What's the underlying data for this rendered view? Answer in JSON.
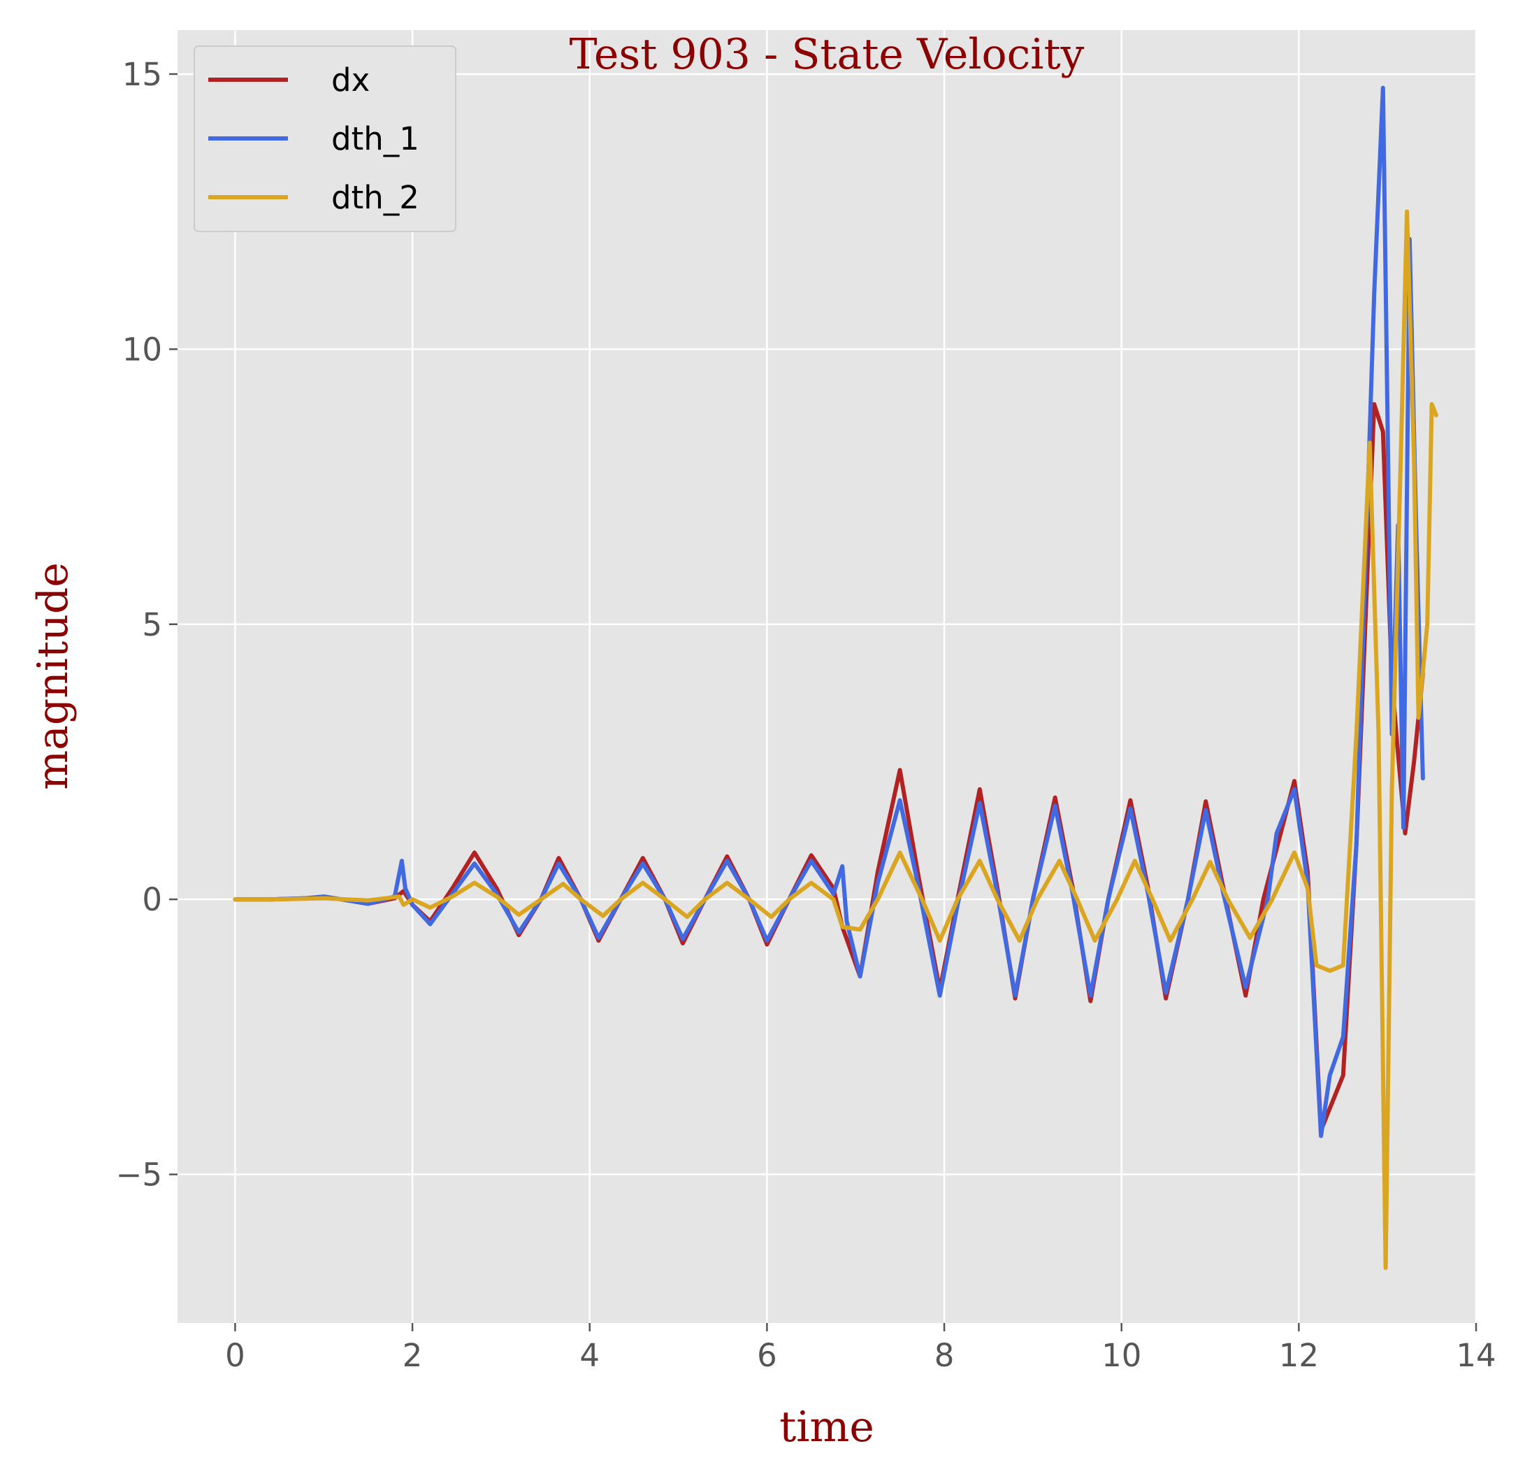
{
  "chart_data": {
    "type": "line",
    "title": "Test 903 - State Velocity",
    "xlabel": "time",
    "ylabel": "magnitude",
    "xlim": [
      -0.65,
      14.0
    ],
    "ylim": [
      -7.7,
      15.8
    ],
    "xticks": [
      0,
      2,
      4,
      6,
      8,
      10,
      12,
      14
    ],
    "yticks": [
      -5,
      0,
      5,
      10,
      15
    ],
    "xtick_labels": [
      "0",
      "2",
      "4",
      "6",
      "8",
      "10",
      "12",
      "14"
    ],
    "ytick_labels": [
      "−5",
      "0",
      "5",
      "10",
      "15"
    ],
    "grid": true,
    "legend_position": "upper-left",
    "background": "#e5e5e5",
    "series": [
      {
        "name": "dx",
        "color": "#b22222",
        "points": [
          [
            0,
            0
          ],
          [
            0.4,
            0
          ],
          [
            0.8,
            0.02
          ],
          [
            1.0,
            0.05
          ],
          [
            1.2,
            0.0
          ],
          [
            1.5,
            -0.08
          ],
          [
            1.8,
            0.02
          ],
          [
            1.9,
            0.15
          ],
          [
            2.0,
            -0.1
          ],
          [
            2.2,
            -0.4
          ],
          [
            2.45,
            0.2
          ],
          [
            2.7,
            0.85
          ],
          [
            2.95,
            0.2
          ],
          [
            3.2,
            -0.65
          ],
          [
            3.45,
            0.0
          ],
          [
            3.65,
            0.75
          ],
          [
            3.9,
            0.0
          ],
          [
            4.1,
            -0.75
          ],
          [
            4.35,
            0.0
          ],
          [
            4.6,
            0.75
          ],
          [
            4.85,
            0.0
          ],
          [
            5.05,
            -0.8
          ],
          [
            5.3,
            0.0
          ],
          [
            5.55,
            0.78
          ],
          [
            5.8,
            0.0
          ],
          [
            6.0,
            -0.82
          ],
          [
            6.25,
            0.0
          ],
          [
            6.5,
            0.8
          ],
          [
            6.75,
            0.2
          ],
          [
            6.85,
            -0.5
          ],
          [
            7.05,
            -1.4
          ],
          [
            7.25,
            0.5
          ],
          [
            7.5,
            2.35
          ],
          [
            7.7,
            0.5
          ],
          [
            7.95,
            -1.65
          ],
          [
            8.15,
            0.0
          ],
          [
            8.4,
            2.0
          ],
          [
            8.6,
            0.2
          ],
          [
            8.8,
            -1.8
          ],
          [
            9.0,
            0.0
          ],
          [
            9.25,
            1.85
          ],
          [
            9.45,
            0.2
          ],
          [
            9.65,
            -1.85
          ],
          [
            9.85,
            0.0
          ],
          [
            10.1,
            1.8
          ],
          [
            10.3,
            0.2
          ],
          [
            10.5,
            -1.8
          ],
          [
            10.75,
            0.0
          ],
          [
            10.95,
            1.78
          ],
          [
            11.15,
            0.2
          ],
          [
            11.4,
            -1.75
          ],
          [
            11.6,
            0.0
          ],
          [
            11.95,
            2.15
          ],
          [
            12.1,
            0.5
          ],
          [
            12.25,
            -4.2
          ],
          [
            12.35,
            -3.8
          ],
          [
            12.5,
            -3.2
          ],
          [
            12.65,
            1.0
          ],
          [
            12.75,
            5.0
          ],
          [
            12.85,
            9.0
          ],
          [
            12.95,
            8.5
          ],
          [
            13.05,
            4.0
          ],
          [
            13.1,
            3.0
          ],
          [
            13.2,
            1.2
          ],
          [
            13.3,
            2.5
          ],
          [
            13.4,
            4.1
          ]
        ]
      },
      {
        "name": "dth_1",
        "color": "#4169e1",
        "points": [
          [
            0,
            0
          ],
          [
            0.4,
            0
          ],
          [
            0.8,
            0.02
          ],
          [
            1.0,
            0.05
          ],
          [
            1.2,
            0.0
          ],
          [
            1.5,
            -0.08
          ],
          [
            1.8,
            0.05
          ],
          [
            1.88,
            0.7
          ],
          [
            1.92,
            0.2
          ],
          [
            2.0,
            -0.1
          ],
          [
            2.2,
            -0.45
          ],
          [
            2.45,
            0.1
          ],
          [
            2.7,
            0.65
          ],
          [
            2.95,
            0.1
          ],
          [
            3.2,
            -0.6
          ],
          [
            3.45,
            0.0
          ],
          [
            3.65,
            0.65
          ],
          [
            3.9,
            0.0
          ],
          [
            4.1,
            -0.7
          ],
          [
            4.35,
            0.0
          ],
          [
            4.6,
            0.65
          ],
          [
            4.85,
            0.0
          ],
          [
            5.05,
            -0.72
          ],
          [
            5.3,
            0.0
          ],
          [
            5.55,
            0.7
          ],
          [
            5.8,
            0.0
          ],
          [
            6.0,
            -0.75
          ],
          [
            6.25,
            0.0
          ],
          [
            6.5,
            0.7
          ],
          [
            6.75,
            0.1
          ],
          [
            6.85,
            0.6
          ],
          [
            6.9,
            -0.4
          ],
          [
            7.05,
            -1.4
          ],
          [
            7.25,
            0.3
          ],
          [
            7.5,
            1.8
          ],
          [
            7.7,
            0.3
          ],
          [
            7.95,
            -1.75
          ],
          [
            8.15,
            -0.1
          ],
          [
            8.4,
            1.75
          ],
          [
            8.6,
            0.1
          ],
          [
            8.8,
            -1.75
          ],
          [
            9.0,
            0.0
          ],
          [
            9.25,
            1.7
          ],
          [
            9.45,
            0.1
          ],
          [
            9.65,
            -1.75
          ],
          [
            9.85,
            0.0
          ],
          [
            10.1,
            1.65
          ],
          [
            10.3,
            0.1
          ],
          [
            10.5,
            -1.7
          ],
          [
            10.75,
            0.0
          ],
          [
            10.95,
            1.62
          ],
          [
            11.15,
            0.1
          ],
          [
            11.4,
            -1.6
          ],
          [
            11.65,
            0.0
          ],
          [
            11.75,
            1.2
          ],
          [
            11.95,
            2.0
          ],
          [
            12.1,
            0.3
          ],
          [
            12.25,
            -4.3
          ],
          [
            12.35,
            -3.2
          ],
          [
            12.5,
            -2.5
          ],
          [
            12.65,
            1.0
          ],
          [
            12.75,
            6.0
          ],
          [
            12.85,
            11.0
          ],
          [
            12.95,
            14.75
          ],
          [
            13.05,
            3.0
          ],
          [
            13.12,
            6.8
          ],
          [
            13.18,
            1.3
          ],
          [
            13.25,
            12.0
          ],
          [
            13.32,
            7.0
          ],
          [
            13.4,
            2.2
          ]
        ]
      },
      {
        "name": "dth_2",
        "color": "#daa520",
        "points": [
          [
            0,
            0
          ],
          [
            0.5,
            0
          ],
          [
            1.0,
            0.02
          ],
          [
            1.5,
            -0.02
          ],
          [
            1.85,
            0.05
          ],
          [
            1.9,
            -0.1
          ],
          [
            2.0,
            0.0
          ],
          [
            2.2,
            -0.15
          ],
          [
            2.45,
            0.05
          ],
          [
            2.7,
            0.3
          ],
          [
            2.95,
            0.05
          ],
          [
            3.2,
            -0.28
          ],
          [
            3.45,
            0.0
          ],
          [
            3.7,
            0.28
          ],
          [
            3.9,
            0.0
          ],
          [
            4.15,
            -0.3
          ],
          [
            4.35,
            0.0
          ],
          [
            4.6,
            0.3
          ],
          [
            4.85,
            0.0
          ],
          [
            5.1,
            -0.32
          ],
          [
            5.3,
            0.0
          ],
          [
            5.55,
            0.3
          ],
          [
            5.8,
            0.0
          ],
          [
            6.05,
            -0.32
          ],
          [
            6.25,
            0.0
          ],
          [
            6.5,
            0.3
          ],
          [
            6.75,
            0.0
          ],
          [
            6.85,
            -0.5
          ],
          [
            7.05,
            -0.55
          ],
          [
            7.25,
            0.0
          ],
          [
            7.5,
            0.85
          ],
          [
            7.75,
            0.0
          ],
          [
            7.95,
            -0.75
          ],
          [
            8.15,
            0.0
          ],
          [
            8.4,
            0.7
          ],
          [
            8.6,
            0.0
          ],
          [
            8.85,
            -0.75
          ],
          [
            9.05,
            0.0
          ],
          [
            9.3,
            0.7
          ],
          [
            9.5,
            0.0
          ],
          [
            9.7,
            -0.75
          ],
          [
            9.95,
            0.0
          ],
          [
            10.15,
            0.7
          ],
          [
            10.35,
            0.0
          ],
          [
            10.55,
            -0.75
          ],
          [
            10.8,
            0.0
          ],
          [
            11.0,
            0.68
          ],
          [
            11.2,
            0.0
          ],
          [
            11.45,
            -0.7
          ],
          [
            11.7,
            0.0
          ],
          [
            11.95,
            0.85
          ],
          [
            12.1,
            0.2
          ],
          [
            12.2,
            -1.2
          ],
          [
            12.35,
            -1.3
          ],
          [
            12.5,
            -1.2
          ],
          [
            12.65,
            3.0
          ],
          [
            12.8,
            8.3
          ],
          [
            12.9,
            3.0
          ],
          [
            12.98,
            -6.7
          ],
          [
            13.05,
            2.0
          ],
          [
            13.15,
            8.0
          ],
          [
            13.22,
            12.5
          ],
          [
            13.3,
            8.0
          ],
          [
            13.35,
            3.3
          ],
          [
            13.45,
            5.0
          ],
          [
            13.5,
            9.0
          ],
          [
            13.55,
            8.8
          ]
        ]
      }
    ]
  }
}
